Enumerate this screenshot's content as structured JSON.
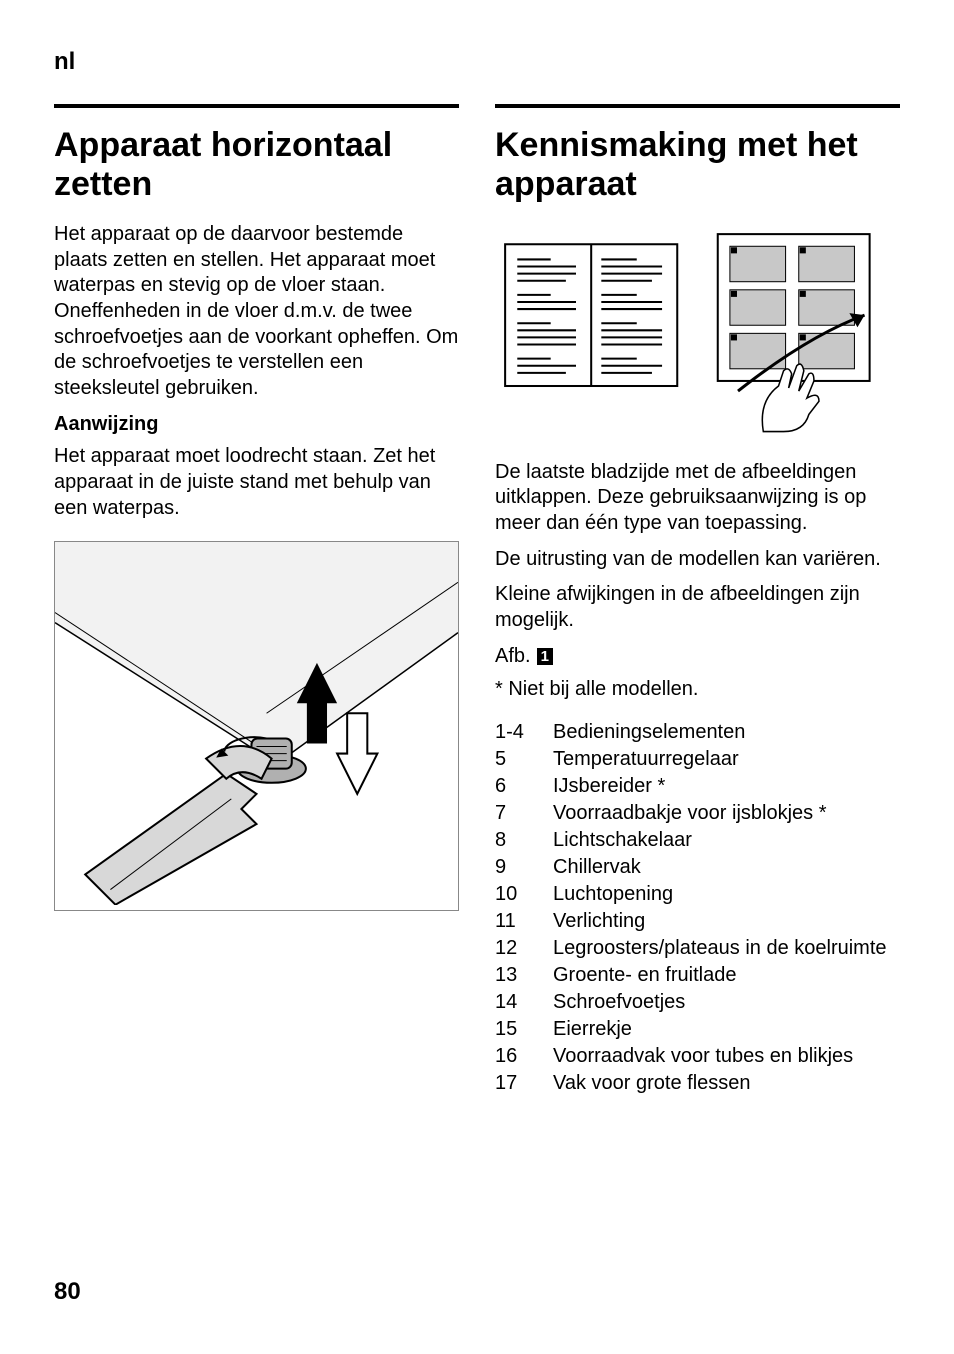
{
  "page": {
    "lang_code": "nl",
    "page_number": "80"
  },
  "left": {
    "heading": "Apparaat horizontaal zetten",
    "para1": "Het apparaat op de daarvoor bestemde plaats zetten en stellen. Het apparaat moet waterpas en stevig op de vloer staan. Oneffenheden in de vloer d.m.v. de twee schroefvoetjes aan de voorkant opheffen. Om de schroefvoetjes te verstellen een steeksleutel gebruiken.",
    "subhead": "Aanwijzing",
    "para2": "Het apparaat moet loodrecht staan. Zet het apparaat in de juiste stand met behulp van een waterpas.",
    "figure": {
      "border_color": "#888888",
      "background": "#ffffff",
      "arrow_fill": "#000000",
      "arrow_outline_fill": "#ffffff",
      "arrow_outline_stroke": "#000000",
      "foot_fill": "#b0b0b0",
      "wrench_fill": "#d0d0d0",
      "wrench_stroke": "#000000",
      "panel_fill": "#f0f0f0"
    }
  },
  "right": {
    "heading": "Kennismaking met het apparaat",
    "booklet": {
      "stroke": "#000000",
      "page_fill": "#ffffff",
      "line_fill": "#000000",
      "shade_fill": "#c8c8c8",
      "hand_fill": "#ffffff",
      "hand_stroke": "#000000"
    },
    "para1": "De laatste bladzijde met de afbeeldingen uitklappen. Deze gebruiksaanwijzing is op meer dan één type van toepassing.",
    "para2": "De uitrusting van de modellen kan variëren.",
    "para3": "Kleine afwijkingen in de afbeeldingen zijn mogelijk.",
    "afb_label": "Afb.",
    "afb_num": "1",
    "footnote": "* Niet bij alle modellen.",
    "parts": [
      {
        "num": "1-4",
        "label": "Bedieningselementen"
      },
      {
        "num": "5",
        "label": "Temperatuurregelaar"
      },
      {
        "num": "6",
        "label": "IJsbereider *"
      },
      {
        "num": "7",
        "label": "Voorraadbakje voor ijsblokjes *"
      },
      {
        "num": "8",
        "label": "Lichtschakelaar"
      },
      {
        "num": "9",
        "label": "Chillervak"
      },
      {
        "num": "10",
        "label": "Luchtopening"
      },
      {
        "num": "11",
        "label": "Verlichting"
      },
      {
        "num": "12",
        "label": "Legroosters/plateaus in de koelruimte"
      },
      {
        "num": "13",
        "label": "Groente- en fruitlade"
      },
      {
        "num": "14",
        "label": "Schroefvoetjes"
      },
      {
        "num": "15",
        "label": "Eierrekje"
      },
      {
        "num": "16",
        "label": "Voorraadvak voor tubes en blikjes"
      },
      {
        "num": "17",
        "label": "Vak voor grote flessen"
      }
    ]
  }
}
